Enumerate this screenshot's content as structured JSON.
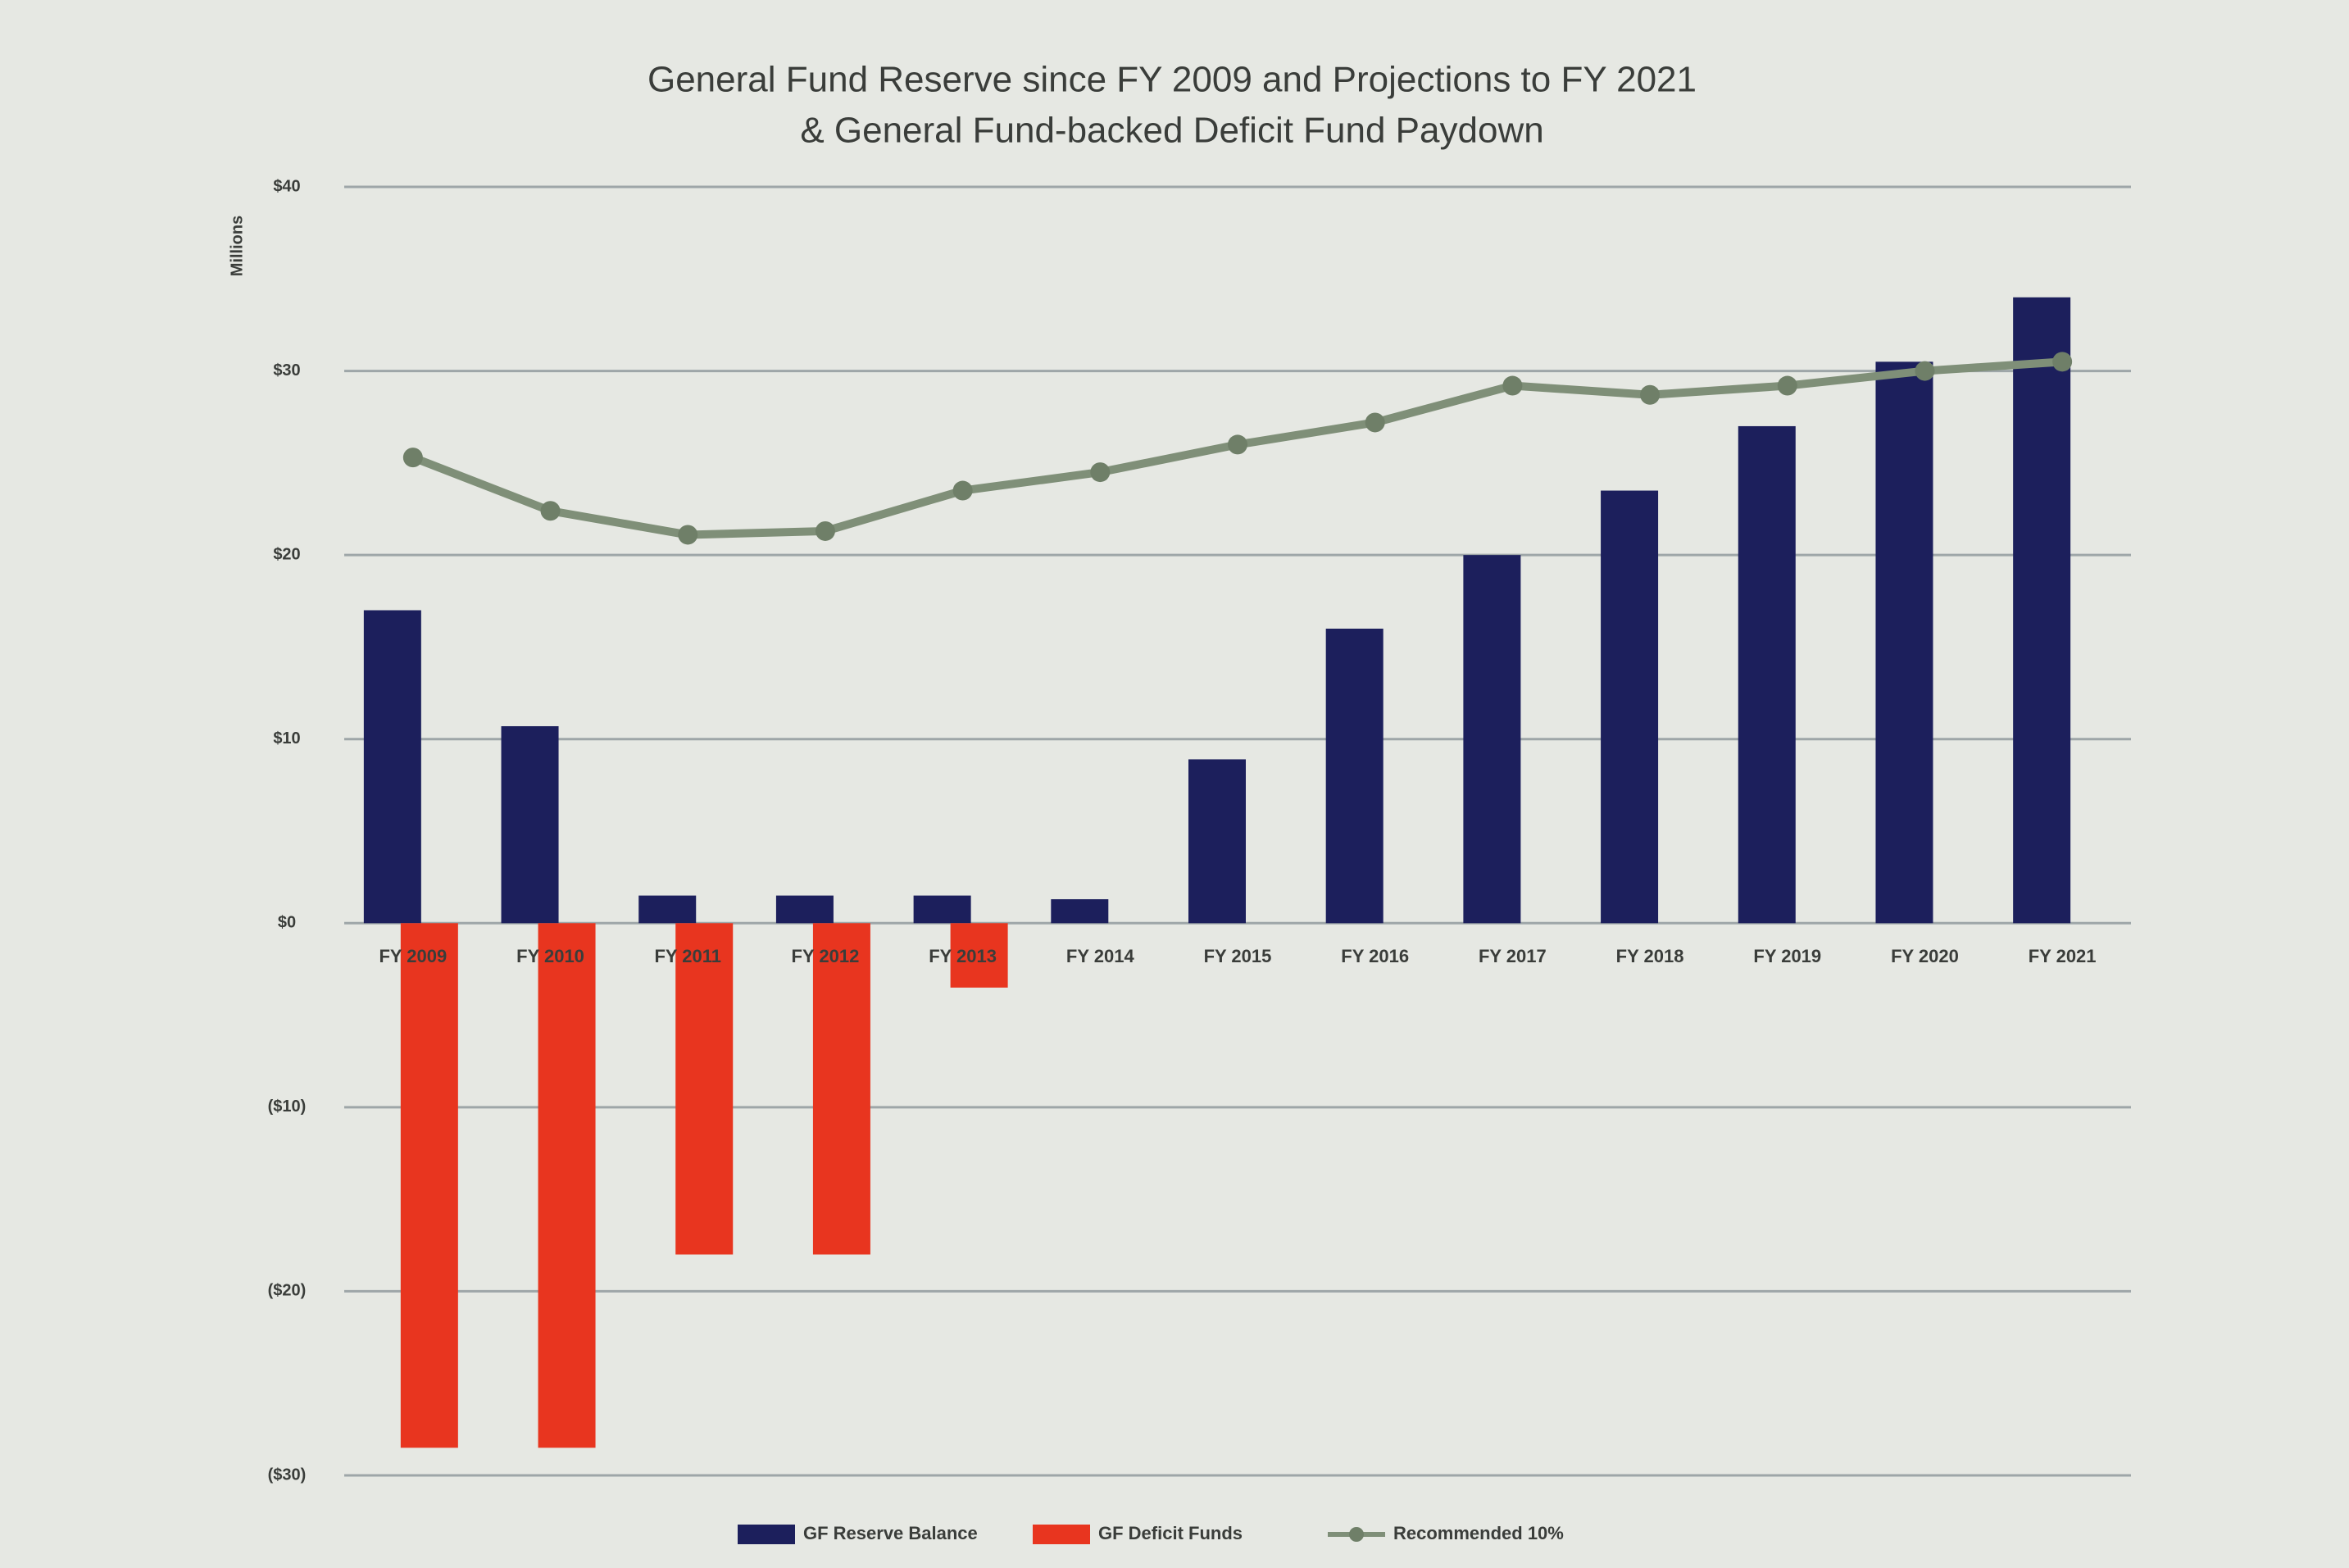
{
  "chart_data": {
    "type": "bar-line",
    "title": "General Fund Reserve since FY 2009 and Projections to FY 2021",
    "subtitle": "& General Fund-backed Deficit Fund Paydown",
    "y_label": "Millions",
    "categories": [
      "FY 2009",
      "FY 2010",
      "FY 2011",
      "FY 2012",
      "FY 2013",
      "FY 2014",
      "FY 2015",
      "FY 2016",
      "FY 2017",
      "FY 2018",
      "FY 2019",
      "FY 2020",
      "FY 2021"
    ],
    "series": [
      {
        "name": "GF Reserve Balance",
        "kind": "bar",
        "color": "#1c1f5c",
        "values": [
          17,
          10.7,
          1.5,
          1.5,
          1.5,
          1.3,
          8.9,
          16,
          20,
          23.5,
          27,
          30.5,
          34
        ]
      },
      {
        "name": "GF Deficit Funds",
        "kind": "bar",
        "color": "#e8351f",
        "values": [
          -28.5,
          -28.5,
          -18,
          -18,
          -3.5,
          null,
          null,
          null,
          null,
          null,
          null,
          null,
          null
        ]
      },
      {
        "name": "Recommended 10%",
        "kind": "line",
        "color": "#7f8f78",
        "values": [
          25.3,
          22.4,
          21.1,
          21.3,
          23.5,
          24.5,
          26,
          27.2,
          29.2,
          28.7,
          29.2,
          30,
          30.5
        ]
      }
    ],
    "ylim": [
      -30,
      40
    ],
    "yticks": [
      {
        "value": -30,
        "label": "($30)"
      },
      {
        "value": -20,
        "label": "($20)"
      },
      {
        "value": -10,
        "label": "($10)"
      },
      {
        "value": 0,
        "label": "$0"
      },
      {
        "value": 10,
        "label": "$10"
      },
      {
        "value": 20,
        "label": "$20"
      },
      {
        "value": 30,
        "label": "$30"
      },
      {
        "value": 40,
        "label": "$40"
      }
    ],
    "grid": true,
    "legend": "bottom"
  }
}
